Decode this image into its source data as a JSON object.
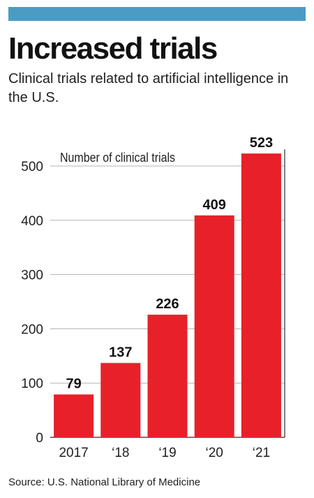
{
  "header": {
    "accent_color": "#4a9cc4",
    "title": "Increased trials",
    "subtitle": "Clinical trials related to artificial intelligence in the U.S."
  },
  "source": "Source: U.S. National Library of Medicine",
  "chart_data": {
    "type": "bar",
    "categories": [
      "2017",
      "‘18",
      "‘19",
      "‘20",
      "‘21"
    ],
    "series": [
      {
        "values": [
          79,
          137,
          226,
          409,
          523
        ],
        "color": "#e8202a"
      }
    ],
    "ylabel": "Number of clinical trials",
    "yticks": [
      0,
      100,
      200,
      300,
      400,
      500
    ],
    "ylim": [
      0,
      523
    ],
    "grid": true,
    "data_labels": true
  }
}
